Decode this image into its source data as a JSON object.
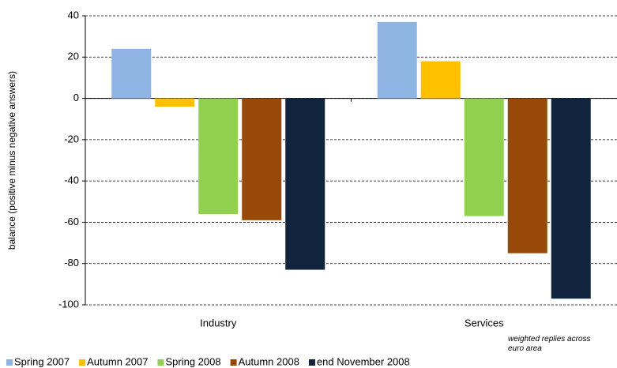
{
  "chart_data": {
    "type": "bar",
    "y_label": "balance (positive minus negative answers)",
    "annotation": "weighted replies across euro area",
    "categories": [
      "Industry",
      "Services"
    ],
    "series": [
      {
        "name": "Spring 2007",
        "color": "#8db4e2",
        "values": [
          24,
          37
        ]
      },
      {
        "name": "Autumn 2007",
        "color": "#ffc000",
        "values": [
          -4,
          18
        ]
      },
      {
        "name": "Spring 2008",
        "color": "#92d050",
        "values": [
          -56,
          -57
        ]
      },
      {
        "name": "Autumn 2008",
        "color": "#984807",
        "values": [
          -59,
          -75
        ]
      },
      {
        "name": "end November 2008",
        "color": "#10243e",
        "values": [
          -83,
          -97
        ]
      }
    ],
    "ylim": [
      -100,
      40
    ],
    "yticks": [
      -100,
      -80,
      -60,
      -40,
      -20,
      0,
      20,
      40
    ],
    "grid": true,
    "legend": "bottom"
  }
}
